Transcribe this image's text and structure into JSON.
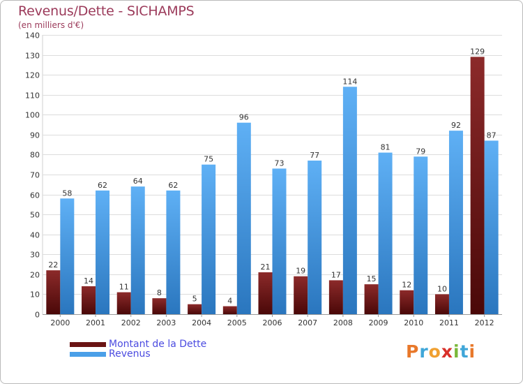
{
  "title": "Revenus/Dette - SICHAMPS",
  "subtitle": "(en milliers d'€)",
  "legend": {
    "debt": "Montant de la Dette",
    "revenue": "Revenus"
  },
  "logo": {
    "letters": [
      "P",
      "r",
      "o",
      "x",
      "i",
      "t",
      "i"
    ],
    "text": "Proxiti"
  },
  "colors": {
    "debt": "#7a1f1f",
    "debt_dark": "#4a0a0a",
    "revenue": "#5aaaf0",
    "revenue_dark": "#2c78c0",
    "title": "#9b3a5a",
    "legend_text": "#4b4be0"
  },
  "chart_data": {
    "type": "bar",
    "title": "Revenus/Dette - SICHAMPS",
    "ylabel": "(en milliers d'€)",
    "xlabel": "",
    "categories": [
      "2000",
      "2001",
      "2002",
      "2003",
      "2004",
      "2005",
      "2006",
      "2007",
      "2008",
      "2009",
      "2010",
      "2011",
      "2012"
    ],
    "series": [
      {
        "name": "Montant de la Dette",
        "values": [
          22,
          14,
          11,
          8,
          5,
          4,
          21,
          19,
          17,
          15,
          12,
          10,
          129
        ]
      },
      {
        "name": "Revenus",
        "values": [
          58,
          62,
          64,
          62,
          75,
          96,
          73,
          77,
          114,
          81,
          79,
          92,
          87
        ]
      }
    ],
    "ylim": [
      0,
      140
    ],
    "yticks": [
      0,
      10,
      20,
      30,
      40,
      50,
      60,
      70,
      80,
      90,
      100,
      110,
      120,
      130,
      140
    ],
    "grid": true,
    "legend_position": "bottom-left"
  }
}
